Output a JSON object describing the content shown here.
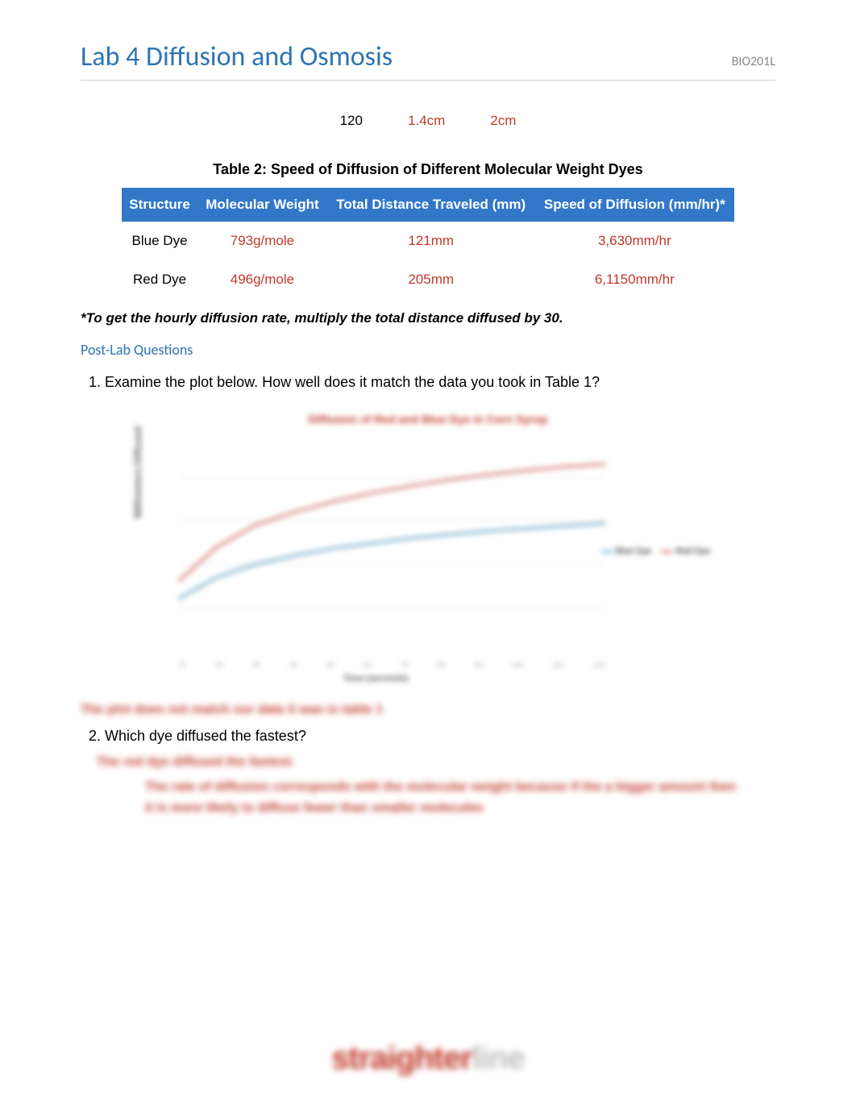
{
  "header": {
    "title": "Lab 4 Diffusion and Osmosis",
    "course": "BIO201L"
  },
  "mini_row": {
    "c1": "120",
    "c2": "1.4cm",
    "c3": "2cm",
    "c1_color": "#000000",
    "c2_color": "#c0392b",
    "c3_color": "#c0392b"
  },
  "table2": {
    "caption": "Table 2: Speed of Diffusion of Different Molecular Weight Dyes",
    "header_bg": "#3378c8",
    "header_color": "#ffffff",
    "columns": [
      "Structure",
      "Molecular Weight",
      "Total Distance Traveled (mm)",
      "Speed of Diffusion (mm/hr)*"
    ],
    "rows": [
      {
        "structure": "Blue Dye",
        "mw": "793g/mole",
        "dist": "121mm",
        "speed": "3,630mm/hr"
      },
      {
        "structure": "Red Dye",
        "mw": "496g/mole",
        "dist": "205mm",
        "speed": "6,1150mm/hr"
      }
    ],
    "value_color": "#c0392b",
    "label_color": "#000000"
  },
  "footnote": "*To get the hourly diffusion rate, multiply the total distance diffused by 30.",
  "section_head": "Post-Lab Questions",
  "q1": "1. Examine the plot below. How well does it match the data you took in Table 1?",
  "q2": "2. Which dye diffused the fastest?",
  "chart": {
    "type": "line",
    "title": "Diffusion of Red and Blue Dye in Corn Syrup",
    "x_label": "Time (seconds)",
    "y_label": "Millimeters Diffused",
    "background_color": "#ffffff",
    "grid_color": "#e6e6e6",
    "xlim": [
      10,
      120
    ],
    "ylim": [
      0,
      25
    ],
    "x_ticks": [
      "10",
      "20",
      "30",
      "40",
      "50",
      "60",
      "70",
      "80",
      "90",
      "100",
      "110",
      "120"
    ],
    "grid_y": [
      0,
      5,
      10,
      15,
      20,
      25
    ],
    "series": [
      {
        "name": "Blue Dye",
        "color": "#6fa8c9",
        "line_width": 3,
        "points": [
          [
            10,
            6
          ],
          [
            20,
            8.5
          ],
          [
            30,
            10
          ],
          [
            40,
            11
          ],
          [
            50,
            11.8
          ],
          [
            60,
            12.4
          ],
          [
            70,
            13
          ],
          [
            80,
            13.4
          ],
          [
            90,
            13.8
          ],
          [
            100,
            14.1
          ],
          [
            110,
            14.4
          ],
          [
            120,
            14.7
          ]
        ]
      },
      {
        "name": "Red Dye",
        "color": "#d2776e",
        "line_width": 3,
        "points": [
          [
            10,
            8
          ],
          [
            20,
            12
          ],
          [
            30,
            14.5
          ],
          [
            40,
            16
          ],
          [
            50,
            17.2
          ],
          [
            60,
            18.2
          ],
          [
            70,
            19
          ],
          [
            80,
            19.7
          ],
          [
            90,
            20.3
          ],
          [
            100,
            20.8
          ],
          [
            110,
            21.2
          ],
          [
            120,
            21.5
          ]
        ]
      }
    ],
    "legend_items": [
      {
        "label": "Blue Dye",
        "color": "#6fa8c9"
      },
      {
        "label": "Red Dye",
        "color": "#d2776e"
      }
    ]
  },
  "blur_answers": {
    "a1": "The plot does not match our data it was in table 1",
    "a2": "The red dye diffused the fastest.",
    "a3": "The rate of diffusion corresponds with the molecular weight because if the a bigger amount then it is more likely to diffuse fewer than smaller molecules"
  },
  "watermark": {
    "part1": "straighter",
    "part2": "line"
  }
}
